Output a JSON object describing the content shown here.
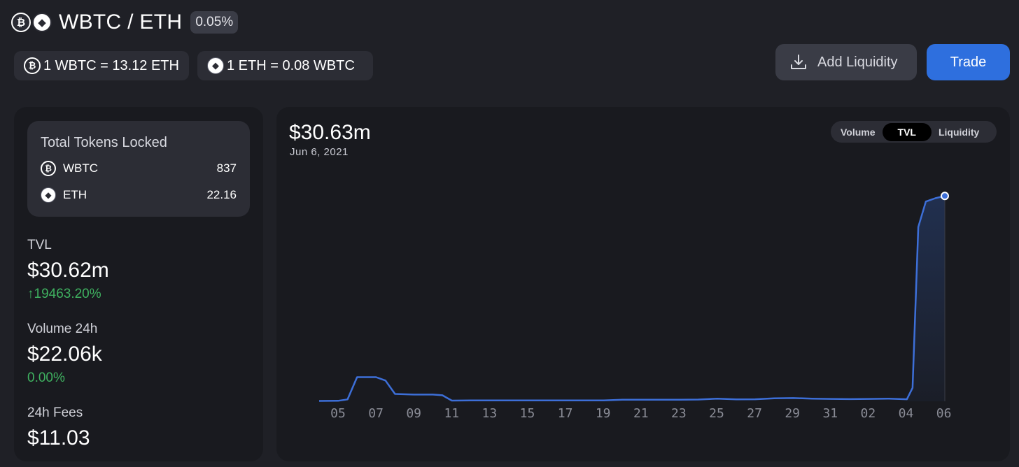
{
  "header": {
    "pair_title": "WBTC / ETH",
    "fee_tier": "0.05%"
  },
  "tokens": {
    "wbtc_glyph": "₿",
    "eth_glyph": "◆"
  },
  "rates": [
    {
      "label": "1 WBTC = 13.12 ETH",
      "icon": "wbtc-logo-icon"
    },
    {
      "label": "1 ETH = 0.08 WBTC",
      "icon": "eth-logo-icon"
    }
  ],
  "actions": {
    "add_liquidity": "Add Liquidity",
    "trade": "Trade"
  },
  "total_tokens_locked": {
    "title": "Total Tokens Locked",
    "rows": [
      {
        "symbol": "WBTC",
        "amount": "837"
      },
      {
        "symbol": "ETH",
        "amount": "22.16"
      }
    ]
  },
  "stats": {
    "tvl": {
      "label": "TVL",
      "value": "$30.62m",
      "change": "19463.20%"
    },
    "volume": {
      "label": "Volume 24h",
      "value": "$22.06k",
      "change": "0.00%"
    },
    "fees": {
      "label": "24h Fees",
      "value": "$11.03"
    }
  },
  "chart_header": {
    "value": "$30.63m",
    "date": "Jun 6, 2021"
  },
  "toggle": {
    "options": [
      "Volume",
      "TVL",
      "Liquidity"
    ],
    "selected": "TVL"
  },
  "colors": {
    "accent": "#2e6fde",
    "line": "#3d6fd8",
    "positive": "#3fb160",
    "background": "#1f2026",
    "panel": "#191a1f"
  },
  "chart_data": {
    "type": "area",
    "title": "",
    "xlabel": "",
    "ylabel": "",
    "x_tick_labels": [
      "05",
      "07",
      "09",
      "11",
      "13",
      "15",
      "17",
      "19",
      "21",
      "23",
      "25",
      "27",
      "29",
      "31",
      "02",
      "04",
      "06"
    ],
    "series": [
      {
        "values": [
          [
            4.0,
            0.05
          ],
          [
            5.0,
            0.07
          ],
          [
            5.5,
            0.28
          ],
          [
            6.0,
            3.6
          ],
          [
            7.0,
            3.6
          ],
          [
            7.5,
            3.1
          ],
          [
            8.0,
            1.1
          ],
          [
            9.0,
            1.0
          ],
          [
            10.0,
            1.0
          ],
          [
            10.5,
            0.9
          ],
          [
            11.0,
            0.1
          ],
          [
            12.0,
            0.12
          ],
          [
            13.0,
            0.12
          ],
          [
            14.0,
            0.12
          ],
          [
            15.0,
            0.12
          ],
          [
            16.0,
            0.12
          ],
          [
            17.0,
            0.14
          ],
          [
            18.0,
            0.14
          ],
          [
            19.0,
            0.14
          ],
          [
            20.0,
            0.24
          ],
          [
            21.0,
            0.24
          ],
          [
            22.0,
            0.24
          ],
          [
            23.0,
            0.24
          ],
          [
            24.0,
            0.26
          ],
          [
            25.0,
            0.4
          ],
          [
            26.0,
            0.28
          ],
          [
            27.0,
            0.3
          ],
          [
            28.0,
            0.45
          ],
          [
            29.0,
            0.48
          ],
          [
            30.0,
            0.4
          ],
          [
            31.0,
            0.35
          ],
          [
            32.0,
            0.32
          ],
          [
            33.0,
            0.35
          ],
          [
            34.0,
            0.4
          ],
          [
            35.0,
            0.3
          ],
          [
            35.3,
            2.0
          ],
          [
            35.6,
            26.0
          ],
          [
            36.0,
            29.8
          ],
          [
            36.5,
            30.3
          ],
          [
            37.0,
            30.63
          ]
        ]
      }
    ],
    "xlim": [
      4,
      37
    ],
    "ylim": [
      0,
      34
    ],
    "selected_point": {
      "x": 37.0,
      "y": 30.63
    },
    "grid": false,
    "legend": "none"
  }
}
